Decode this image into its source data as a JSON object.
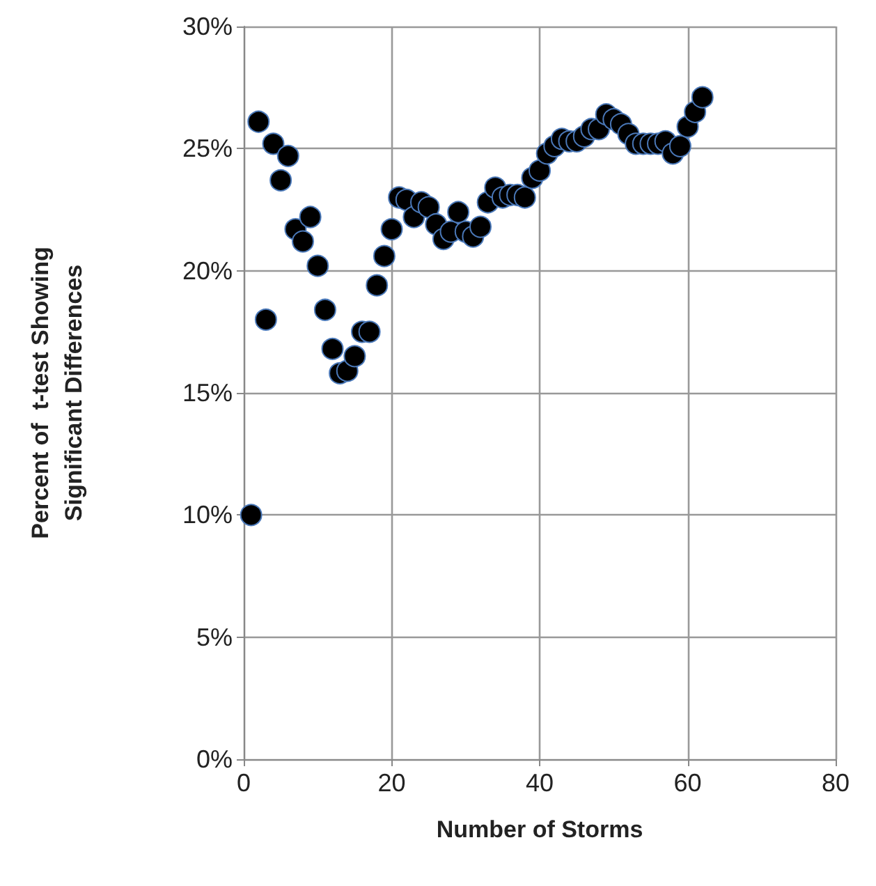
{
  "chart_data": {
    "type": "scatter",
    "xlabel": "Number of Storms",
    "ylabel": "Percent of  t-test Showing\nSignificant Differences",
    "x": [
      1,
      2,
      3,
      4,
      5,
      6,
      7,
      8,
      9,
      10,
      11,
      12,
      13,
      14,
      15,
      16,
      17,
      18,
      19,
      20,
      21,
      22,
      23,
      24,
      25,
      26,
      27,
      28,
      29,
      30,
      31,
      32,
      33,
      34,
      35,
      36,
      37,
      38,
      39,
      40,
      41,
      42,
      43,
      44,
      45,
      46,
      47,
      48,
      49,
      50,
      51,
      52,
      53,
      54,
      55,
      56,
      57,
      58,
      59,
      60,
      61,
      62
    ],
    "series": [
      {
        "color": "#000000",
        "values": [
          10,
          26.1,
          18,
          25.2,
          23.7,
          24.7,
          21.7,
          21.2,
          22.2,
          20.2,
          18.4,
          16.8,
          15.8,
          15.9,
          16.5,
          17.5,
          17.5,
          19.4,
          20.6,
          21.7,
          23,
          22.9,
          22.2,
          22.8,
          22.6,
          21.9,
          21.3,
          21.6,
          22.4,
          21.6,
          21.4,
          21.8,
          22.8,
          23.4,
          23,
          23.1,
          23.1,
          23,
          23.8,
          24.1,
          24.8,
          25.1,
          25.4,
          25.3,
          25.3,
          25.5,
          25.8,
          25.8,
          26.4,
          26.2,
          26,
          25.6,
          25.2,
          25.2,
          25.2,
          25.2,
          25.3,
          24.8,
          25.1,
          25.9,
          26.5,
          27.1
        ]
      }
    ],
    "xlim": [
      0,
      80
    ],
    "xticks": [
      0,
      20,
      40,
      60,
      80
    ],
    "ylim": [
      0,
      30
    ],
    "yticks": [
      {
        "value": 0,
        "label": "0%"
      },
      {
        "value": 5,
        "label": "5%"
      },
      {
        "value": 10,
        "label": "10%"
      },
      {
        "value": 15,
        "label": "15%"
      },
      {
        "value": 20,
        "label": "20%"
      },
      {
        "value": 25,
        "label": "25%"
      },
      {
        "value": 30,
        "label": "30%"
      }
    ],
    "grid": true,
    "marker": "circle"
  }
}
